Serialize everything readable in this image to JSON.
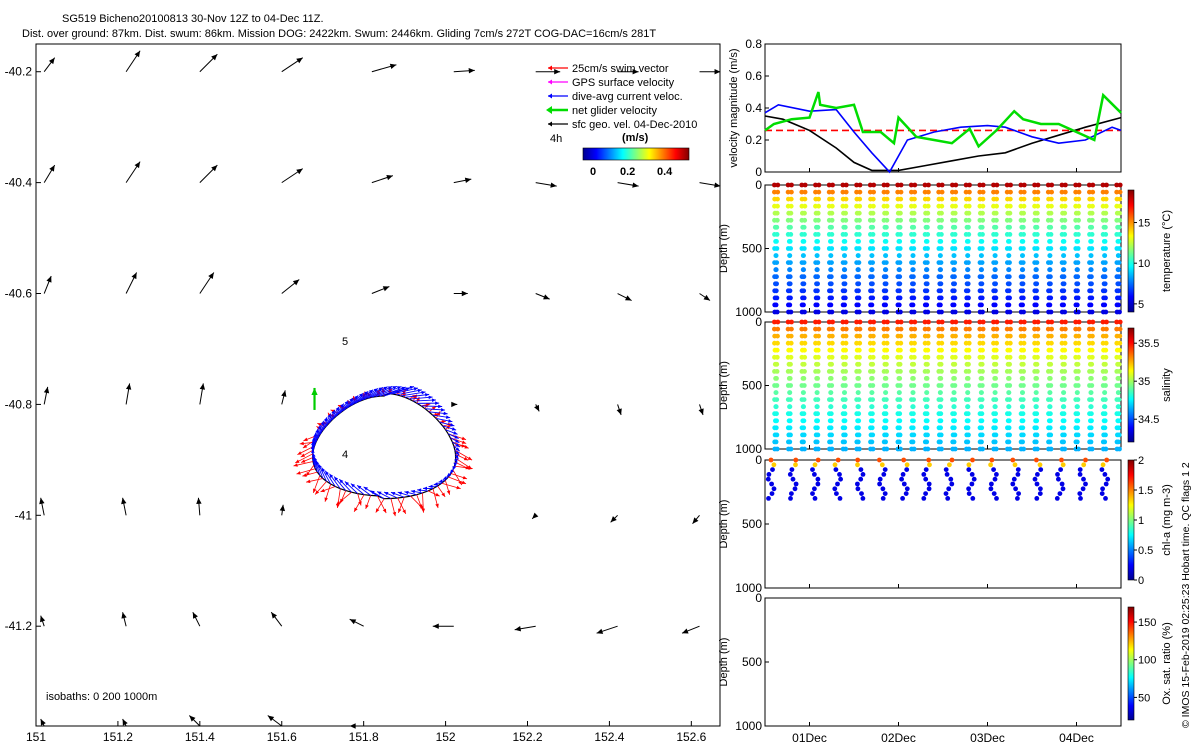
{
  "header": {
    "title": "SG519 Bicheno20100813 30-Nov 12Z to 04-Dec 11Z.",
    "subtitle": "Dist. over ground: 87km. Dist. swum: 86km. Mission DOG: 2422km. Swum: 2446km. Gliding 7cm/s 272T COG-DAC=16cm/s 281T"
  },
  "side_text": "© IMOS 15-Feb-2019 02:25:23 Hobart time. QC flags 1  2",
  "colors": {
    "swim": "#ff0000",
    "gps": "#ff00ff",
    "dac": "#0000ff",
    "net": "#00dd00",
    "geo": "#000000"
  },
  "chart_data": [
    {
      "type": "scatter",
      "name": "map",
      "xlim": [
        151.0,
        152.67
      ],
      "ylim": [
        -41.38,
        -40.15
      ],
      "x_ticks": [
        "151",
        "151.2",
        "151.4",
        "151.6",
        "151.8",
        "152",
        "152.2",
        "152.4",
        "152.6"
      ],
      "y_ticks": [
        "-40.2",
        "-40.4",
        "-40.6",
        "-40.8",
        "-41",
        "-41.2"
      ],
      "legend": {
        "placement": "top-right",
        "items": [
          {
            "label": "25cm/s swim vector",
            "color": "#ff0000"
          },
          {
            "label": "GPS surface velocity",
            "color": "#ff00ff"
          },
          {
            "label": "dive-avg current veloc.",
            "color": "#0000ff"
          },
          {
            "label": "net glider velocity",
            "color": "#00dd00"
          },
          {
            "label": "sfc geo. vel. 04-Dec-2010",
            "color": "#000000"
          }
        ],
        "interval": "4h",
        "colorbar_label": "(m/s)",
        "colorbar_ticks": [
          "0",
          "0.2",
          "0.4"
        ]
      },
      "annotations": [
        "5",
        "4"
      ],
      "isobaths": "isobaths: 0   200   1000m",
      "geo_vectors": [
        {
          "lon": 151.02,
          "lat": -40.2,
          "u": 0.15,
          "v": 0.2
        },
        {
          "lon": 151.22,
          "lat": -40.2,
          "u": 0.2,
          "v": 0.3
        },
        {
          "lon": 151.4,
          "lat": -40.2,
          "u": 0.25,
          "v": 0.25
        },
        {
          "lon": 151.6,
          "lat": -40.2,
          "u": 0.3,
          "v": 0.2
        },
        {
          "lon": 151.82,
          "lat": -40.2,
          "u": 0.35,
          "v": 0.1
        },
        {
          "lon": 152.02,
          "lat": -40.2,
          "u": 0.3,
          "v": 0.02
        },
        {
          "lon": 152.22,
          "lat": -40.2,
          "u": 0.35,
          "v": 0.0
        },
        {
          "lon": 152.42,
          "lat": -40.2,
          "u": 0.3,
          "v": 0.0
        },
        {
          "lon": 152.62,
          "lat": -40.2,
          "u": 0.3,
          "v": 0.0
        },
        {
          "lon": 151.02,
          "lat": -40.4,
          "u": 0.15,
          "v": 0.25
        },
        {
          "lon": 151.22,
          "lat": -40.4,
          "u": 0.2,
          "v": 0.3
        },
        {
          "lon": 151.4,
          "lat": -40.4,
          "u": 0.25,
          "v": 0.25
        },
        {
          "lon": 151.6,
          "lat": -40.4,
          "u": 0.3,
          "v": 0.2
        },
        {
          "lon": 151.82,
          "lat": -40.4,
          "u": 0.3,
          "v": 0.1
        },
        {
          "lon": 152.02,
          "lat": -40.4,
          "u": 0.25,
          "v": 0.05
        },
        {
          "lon": 152.22,
          "lat": -40.4,
          "u": 0.3,
          "v": -0.05
        },
        {
          "lon": 152.42,
          "lat": -40.4,
          "u": 0.3,
          "v": -0.05
        },
        {
          "lon": 152.62,
          "lat": -40.4,
          "u": 0.3,
          "v": -0.05
        },
        {
          "lon": 151.02,
          "lat": -40.6,
          "u": 0.1,
          "v": 0.25
        },
        {
          "lon": 151.22,
          "lat": -40.6,
          "u": 0.15,
          "v": 0.3
        },
        {
          "lon": 151.4,
          "lat": -40.6,
          "u": 0.2,
          "v": 0.3
        },
        {
          "lon": 151.6,
          "lat": -40.6,
          "u": 0.25,
          "v": 0.2
        },
        {
          "lon": 151.82,
          "lat": -40.6,
          "u": 0.25,
          "v": 0.1
        },
        {
          "lon": 152.02,
          "lat": -40.6,
          "u": 0.2,
          "v": 0.0
        },
        {
          "lon": 152.22,
          "lat": -40.6,
          "u": 0.2,
          "v": -0.08
        },
        {
          "lon": 152.42,
          "lat": -40.6,
          "u": 0.2,
          "v": -0.1
        },
        {
          "lon": 152.62,
          "lat": -40.6,
          "u": 0.15,
          "v": -0.1
        },
        {
          "lon": 151.02,
          "lat": -40.8,
          "u": 0.05,
          "v": 0.25
        },
        {
          "lon": 151.22,
          "lat": -40.8,
          "u": 0.05,
          "v": 0.3
        },
        {
          "lon": 151.4,
          "lat": -40.8,
          "u": 0.05,
          "v": 0.3
        },
        {
          "lon": 151.6,
          "lat": -40.8,
          "u": 0.05,
          "v": 0.2
        },
        {
          "lon": 152.02,
          "lat": -40.8,
          "u": 0.05,
          "v": 0.0
        },
        {
          "lon": 152.22,
          "lat": -40.8,
          "u": 0.05,
          "v": -0.1
        },
        {
          "lon": 152.42,
          "lat": -40.8,
          "u": 0.05,
          "v": -0.15
        },
        {
          "lon": 152.62,
          "lat": -40.8,
          "u": 0.05,
          "v": -0.15
        },
        {
          "lon": 151.02,
          "lat": -41.0,
          "u": -0.05,
          "v": 0.25
        },
        {
          "lon": 151.22,
          "lat": -41.0,
          "u": -0.05,
          "v": 0.25
        },
        {
          "lon": 151.4,
          "lat": -41.0,
          "u": -0.02,
          "v": 0.25
        },
        {
          "lon": 151.6,
          "lat": -41.0,
          "u": 0.02,
          "v": 0.15
        },
        {
          "lon": 152.22,
          "lat": -41.0,
          "u": -0.05,
          "v": -0.05
        },
        {
          "lon": 152.42,
          "lat": -41.0,
          "u": -0.1,
          "v": -0.1
        },
        {
          "lon": 152.62,
          "lat": -41.0,
          "u": -0.1,
          "v": -0.12
        },
        {
          "lon": 151.02,
          "lat": -41.2,
          "u": -0.05,
          "v": 0.15
        },
        {
          "lon": 151.22,
          "lat": -41.2,
          "u": -0.05,
          "v": 0.2
        },
        {
          "lon": 151.4,
          "lat": -41.2,
          "u": -0.1,
          "v": 0.2
        },
        {
          "lon": 151.6,
          "lat": -41.2,
          "u": -0.15,
          "v": 0.2
        },
        {
          "lon": 151.8,
          "lat": -41.2,
          "u": -0.2,
          "v": 0.1
        },
        {
          "lon": 152.02,
          "lat": -41.2,
          "u": -0.3,
          "v": 0.0
        },
        {
          "lon": 152.22,
          "lat": -41.2,
          "u": -0.3,
          "v": -0.05
        },
        {
          "lon": 152.42,
          "lat": -41.2,
          "u": -0.3,
          "v": -0.1
        },
        {
          "lon": 152.62,
          "lat": -41.2,
          "u": -0.25,
          "v": -0.1
        },
        {
          "lon": 151.02,
          "lat": -41.38,
          "u": -0.05,
          "v": 0.1
        },
        {
          "lon": 151.22,
          "lat": -41.38,
          "u": -0.05,
          "v": 0.1
        },
        {
          "lon": 151.4,
          "lat": -41.38,
          "u": -0.15,
          "v": 0.15
        },
        {
          "lon": 151.6,
          "lat": -41.38,
          "u": -0.2,
          "v": 0.15
        },
        {
          "lon": 151.8,
          "lat": -41.38,
          "u": -0.2,
          "v": 0.0
        }
      ],
      "glider_loop": {
        "center_lon": 151.85,
        "center_lat": -40.875,
        "radius_lon": 0.17,
        "radius_lat": 0.095
      }
    },
    {
      "type": "line",
      "name": "velocity",
      "ylabel": "velocity magnitude (m/s)",
      "ylim": [
        0,
        0.8
      ],
      "y_ticks": [
        0,
        0.2,
        0.4,
        0.6,
        0.8
      ],
      "x_range_days": [
        0.0,
        4.0
      ],
      "series": [
        {
          "color": "#ff0000",
          "style": "dashed",
          "x": [
            0.0,
            4.0
          ],
          "y": [
            0.26,
            0.26
          ]
        },
        {
          "color": "#000000",
          "x": [
            0.0,
            0.2,
            0.5,
            0.8,
            1.0,
            1.2,
            1.5,
            1.8,
            2.1,
            2.4,
            2.7,
            3.0,
            3.3,
            3.6,
            4.0
          ],
          "y": [
            0.35,
            0.33,
            0.26,
            0.15,
            0.06,
            0.01,
            0.01,
            0.04,
            0.07,
            0.1,
            0.12,
            0.18,
            0.23,
            0.28,
            0.34
          ]
        },
        {
          "color": "#0000ff",
          "x": [
            0.0,
            0.15,
            0.5,
            0.8,
            1.0,
            1.2,
            1.4,
            1.6,
            1.9,
            2.2,
            2.5,
            2.7,
            3.0,
            3.3,
            3.6,
            3.9,
            4.0
          ],
          "y": [
            0.37,
            0.42,
            0.38,
            0.39,
            0.25,
            0.12,
            0.0,
            0.2,
            0.25,
            0.28,
            0.29,
            0.28,
            0.22,
            0.18,
            0.2,
            0.28,
            0.26
          ]
        },
        {
          "color": "#00dd00",
          "x": [
            0.0,
            0.1,
            0.3,
            0.5,
            0.6,
            0.62,
            0.8,
            1.0,
            1.1,
            1.3,
            1.45,
            1.5,
            1.7,
            1.9,
            2.1,
            2.3,
            2.4,
            2.6,
            2.8,
            2.9,
            3.1,
            3.3,
            3.5,
            3.7,
            3.8,
            4.0
          ],
          "y": [
            0.26,
            0.3,
            0.33,
            0.34,
            0.5,
            0.42,
            0.4,
            0.42,
            0.25,
            0.25,
            0.18,
            0.34,
            0.22,
            0.2,
            0.18,
            0.27,
            0.16,
            0.26,
            0.38,
            0.33,
            0.3,
            0.3,
            0.25,
            0.2,
            0.48,
            0.37
          ]
        }
      ]
    },
    {
      "type": "scatter",
      "name": "temperature",
      "ylabel": "Depth (m)",
      "clabel": "temperature (°C)",
      "ylim": [
        1000,
        0
      ],
      "y_ticks": [
        0,
        500,
        1000
      ],
      "c_ticks": [
        "5",
        "10",
        "15"
      ],
      "dives": 26,
      "max_depth": 1000
    },
    {
      "type": "scatter",
      "name": "salinity",
      "ylabel": "Depth (m)",
      "clabel": "salinity",
      "ylim": [
        1000,
        0
      ],
      "y_ticks": [
        0,
        500,
        1000
      ],
      "c_ticks": [
        "34.5",
        "35",
        "35.5"
      ],
      "dives": 26,
      "max_depth": 1000
    },
    {
      "type": "scatter",
      "name": "chlorophyll",
      "ylabel": "Depth (m)",
      "clabel": "chl-a (mg m-3)",
      "ylim": [
        1000,
        0
      ],
      "y_ticks": [
        0,
        500,
        1000
      ],
      "c_ticks": [
        "0",
        "0.5",
        "1",
        "1.5",
        "2"
      ],
      "dives": 16,
      "max_depth": 300
    },
    {
      "type": "scatter",
      "name": "oxygen",
      "ylabel": "Depth (m)",
      "clabel": "Ox. sat. ratio (%)",
      "ylim": [
        1000,
        0
      ],
      "y_ticks": [
        0,
        500,
        1000
      ],
      "c_ticks": [
        "50",
        "100",
        "150"
      ]
    }
  ],
  "time_axis": {
    "ticks": [
      "01Dec",
      "02Dec",
      "03Dec",
      "04Dec"
    ],
    "tick_days": [
      0.5,
      1.5,
      2.5,
      3.5
    ]
  }
}
